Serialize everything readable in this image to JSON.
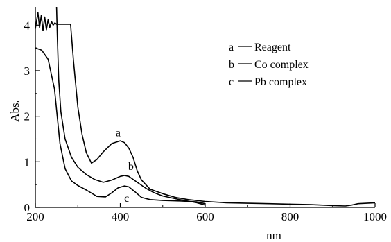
{
  "chart_data": {
    "type": "line",
    "title": "",
    "xlabel": "nm",
    "ylabel": "Abs.",
    "xlim": [
      200,
      1000
    ],
    "ylim": [
      0,
      4.4
    ],
    "x_ticks": [
      200,
      400,
      600,
      800,
      1000
    ],
    "y_ticks": [
      0,
      1,
      2,
      3,
      4
    ],
    "grid": false,
    "legend_position": "top-right",
    "legend": [
      {
        "key": "a",
        "text": "Reagent"
      },
      {
        "key": "b",
        "text": "Co complex"
      },
      {
        "key": "c",
        "text": "Pb complex"
      }
    ],
    "series": [
      {
        "name": "a",
        "legend_key": "a",
        "label_at": [
          395,
          1.56
        ],
        "points": [
          [
            200,
            3.92
          ],
          [
            206,
            4.28
          ],
          [
            210,
            3.95
          ],
          [
            214,
            4.22
          ],
          [
            218,
            3.88
          ],
          [
            222,
            4.18
          ],
          [
            226,
            3.9
          ],
          [
            230,
            4.12
          ],
          [
            234,
            3.95
          ],
          [
            238,
            4.08
          ],
          [
            242,
            4.0
          ],
          [
            246,
            4.05
          ],
          [
            250,
            4.02
          ],
          [
            255,
            4.02
          ],
          [
            270,
            4.02
          ],
          [
            283,
            4.02
          ],
          [
            290,
            3.2
          ],
          [
            300,
            2.2
          ],
          [
            310,
            1.6
          ],
          [
            320,
            1.2
          ],
          [
            332,
            0.97
          ],
          [
            345,
            1.05
          ],
          [
            360,
            1.22
          ],
          [
            380,
            1.4
          ],
          [
            400,
            1.46
          ],
          [
            410,
            1.42
          ],
          [
            420,
            1.3
          ],
          [
            430,
            1.1
          ],
          [
            440,
            0.8
          ],
          [
            450,
            0.6
          ],
          [
            470,
            0.4
          ],
          [
            500,
            0.3
          ],
          [
            530,
            0.22
          ],
          [
            560,
            0.17
          ],
          [
            600,
            0.13
          ],
          [
            650,
            0.1
          ],
          [
            700,
            0.09
          ],
          [
            750,
            0.08
          ],
          [
            800,
            0.07
          ],
          [
            850,
            0.06
          ],
          [
            900,
            0.04
          ],
          [
            930,
            0.03
          ],
          [
            945,
            0.05
          ],
          [
            960,
            0.08
          ],
          [
            1000,
            0.1
          ]
        ]
      },
      {
        "name": "b",
        "legend_key": "b",
        "label_at": [
          425,
          0.82
        ],
        "points": [
          [
            250,
            4.4
          ],
          [
            252,
            3.7
          ],
          [
            255,
            2.8
          ],
          [
            260,
            2.1
          ],
          [
            270,
            1.5
          ],
          [
            285,
            1.1
          ],
          [
            300,
            0.88
          ],
          [
            320,
            0.72
          ],
          [
            340,
            0.61
          ],
          [
            360,
            0.55
          ],
          [
            380,
            0.6
          ],
          [
            400,
            0.68
          ],
          [
            410,
            0.7
          ],
          [
            420,
            0.68
          ],
          [
            440,
            0.55
          ],
          [
            460,
            0.42
          ],
          [
            480,
            0.32
          ],
          [
            500,
            0.25
          ],
          [
            540,
            0.17
          ],
          [
            580,
            0.1
          ],
          [
            600,
            0.05
          ]
        ]
      },
      {
        "name": "c",
        "legend_key": "c",
        "label_at": [
          415,
          0.12
        ],
        "points": [
          [
            200,
            3.5
          ],
          [
            215,
            3.45
          ],
          [
            230,
            3.25
          ],
          [
            245,
            2.6
          ],
          [
            258,
            1.4
          ],
          [
            270,
            0.85
          ],
          [
            285,
            0.58
          ],
          [
            300,
            0.48
          ],
          [
            320,
            0.38
          ],
          [
            345,
            0.24
          ],
          [
            365,
            0.23
          ],
          [
            380,
            0.32
          ],
          [
            395,
            0.43
          ],
          [
            410,
            0.47
          ],
          [
            420,
            0.45
          ],
          [
            435,
            0.34
          ],
          [
            450,
            0.22
          ],
          [
            470,
            0.17
          ],
          [
            500,
            0.15
          ],
          [
            540,
            0.14
          ],
          [
            580,
            0.12
          ],
          [
            600,
            0.08
          ]
        ]
      }
    ]
  }
}
